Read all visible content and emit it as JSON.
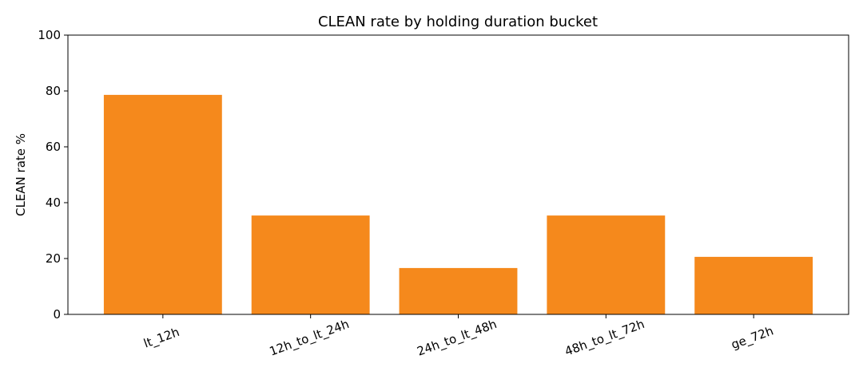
{
  "chart_data": {
    "type": "bar",
    "title": "CLEAN rate by holding duration bucket",
    "ylabel": "CLEAN rate %",
    "categories": [
      "lt_12h",
      "12h_to_lt_24h",
      "24h_to_lt_48h",
      "48h_to_lt_72h",
      "ge_72h"
    ],
    "values": [
      78.6,
      35.4,
      16.6,
      35.4,
      20.6
    ],
    "color": "#f5891c",
    "ylim": [
      0,
      100
    ],
    "yticks": [
      0,
      20,
      40,
      60,
      80,
      100
    ],
    "grid": false
  }
}
